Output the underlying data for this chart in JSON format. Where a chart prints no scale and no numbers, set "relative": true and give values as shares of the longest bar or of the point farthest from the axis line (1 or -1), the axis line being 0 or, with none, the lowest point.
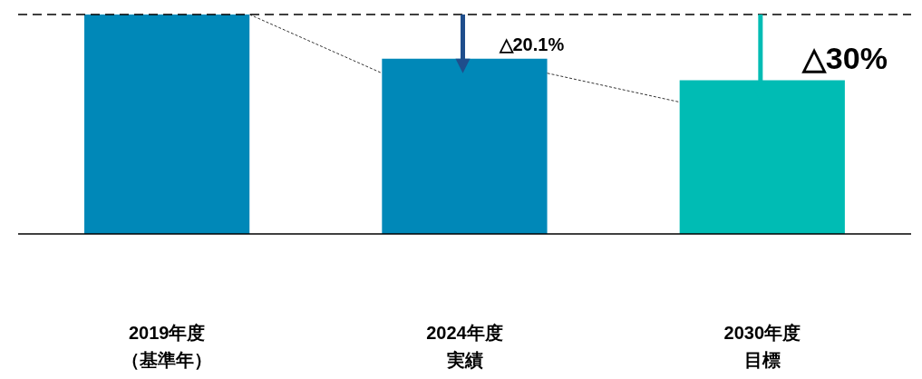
{
  "chart_data": {
    "type": "bar",
    "relative": true,
    "categories": [
      "2019年度（基準年）",
      "2024年度実績",
      "2030年度目標"
    ],
    "values": [
      1,
      0.799,
      0.7
    ],
    "colors": [
      "#0088b8",
      "#0088b8",
      "#00bcb4"
    ],
    "ref_lines": [
      {
        "axis": "y",
        "value": 1,
        "color": "#000000",
        "line_style": "dashed"
      }
    ],
    "annotations": [
      "△20.1%",
      "△30%"
    ]
  }
}
